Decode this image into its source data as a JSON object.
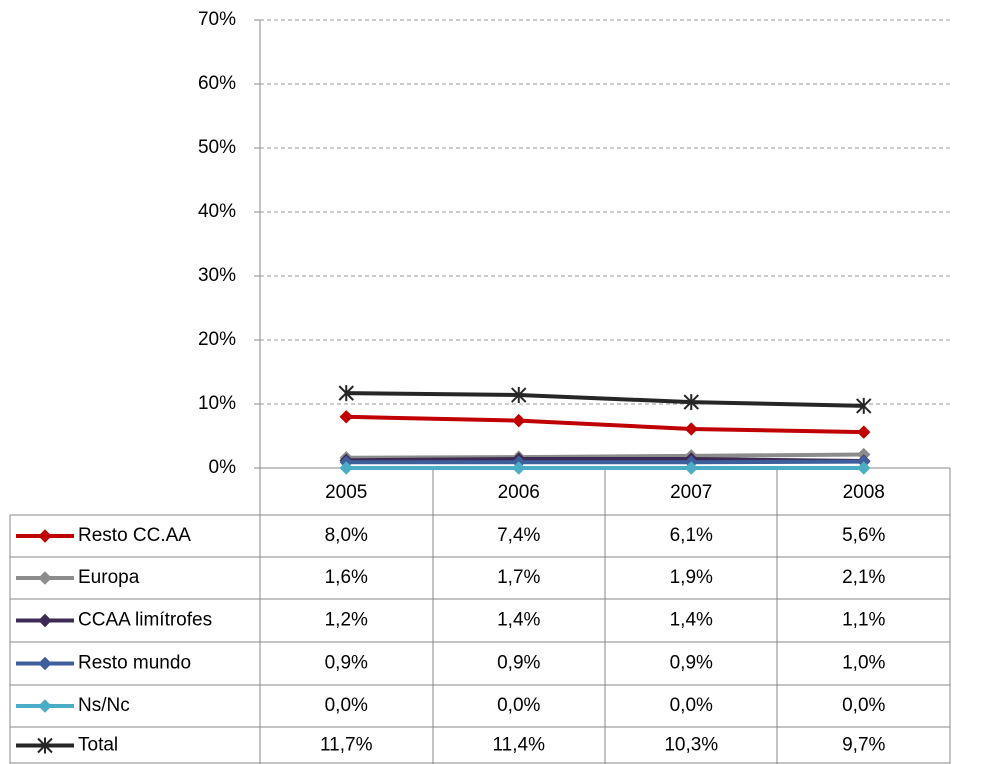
{
  "chart_data": {
    "type": "line",
    "categories": [
      "2005",
      "2006",
      "2007",
      "2008"
    ],
    "ylim": [
      0,
      70
    ],
    "yticks": [
      {
        "value": 0,
        "label": "0%"
      },
      {
        "value": 10,
        "label": "10%"
      },
      {
        "value": 20,
        "label": "20%"
      },
      {
        "value": 30,
        "label": "30%"
      },
      {
        "value": 40,
        "label": "40%"
      },
      {
        "value": 50,
        "label": "50%"
      },
      {
        "value": 60,
        "label": "60%"
      },
      {
        "value": 70,
        "label": "70%"
      }
    ],
    "grid": true,
    "series": [
      {
        "name": "Resto CC.AA",
        "color": "#c00000",
        "marker": "diamond",
        "values": [
          8.0,
          7.4,
          6.1,
          5.6
        ],
        "value_labels": [
          "8,0%",
          "7,4%",
          "6,1%",
          "5,6%"
        ]
      },
      {
        "name": "Europa",
        "color": "#8c8c8c",
        "marker": "diamond",
        "values": [
          1.6,
          1.7,
          1.9,
          2.1
        ],
        "value_labels": [
          "1,6%",
          "1,7%",
          "1,9%",
          "2,1%"
        ]
      },
      {
        "name": "CCAA limítrofes",
        "color": "#3d2b56",
        "marker": "diamond",
        "values": [
          1.2,
          1.4,
          1.4,
          1.1
        ],
        "value_labels": [
          "1,2%",
          "1,4%",
          "1,4%",
          "1,1%"
        ]
      },
      {
        "name": "Resto mundo",
        "color": "#3e5f9c",
        "marker": "diamond",
        "values": [
          0.9,
          0.9,
          0.9,
          1.0
        ],
        "value_labels": [
          "0,9%",
          "0,9%",
          "0,9%",
          "1,0%"
        ]
      },
      {
        "name": "Ns/Nc",
        "color": "#4bacc6",
        "marker": "diamond",
        "values": [
          0.0,
          0.0,
          0.0,
          0.0
        ],
        "value_labels": [
          "0,0%",
          "0,0%",
          "0,0%",
          "0,0%"
        ]
      },
      {
        "name": "Total",
        "color": "#262626",
        "marker": "star",
        "values": [
          11.7,
          11.4,
          10.3,
          9.7
        ],
        "value_labels": [
          "11,7%",
          "11,4%",
          "10,3%",
          "9,7%"
        ]
      }
    ]
  }
}
